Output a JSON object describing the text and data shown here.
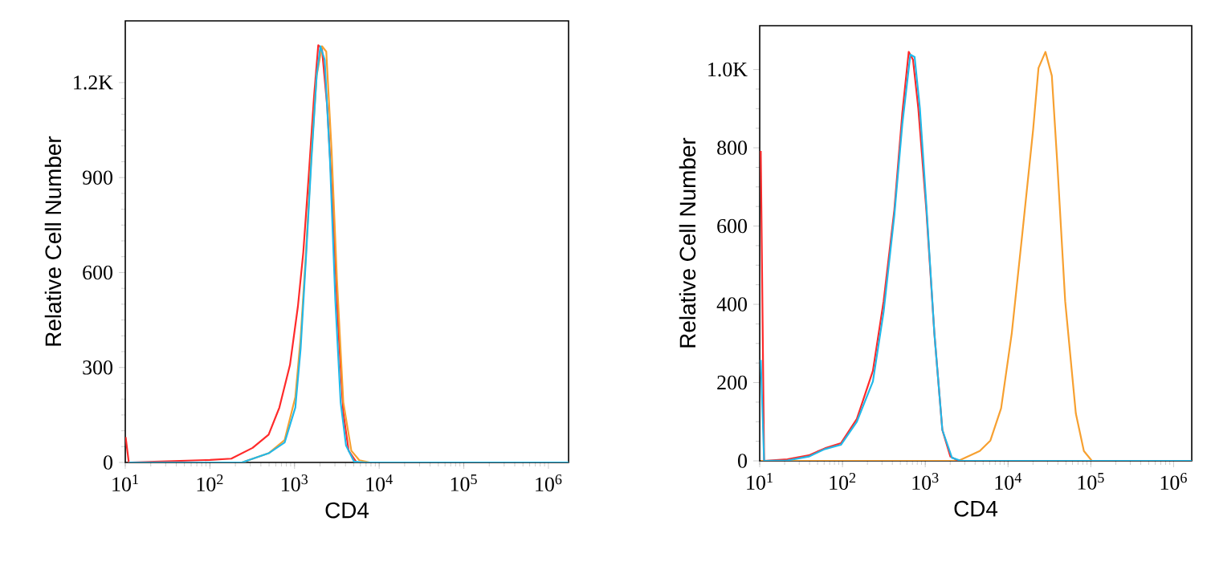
{
  "chart_data": [
    {
      "type": "line",
      "xlabel": "CD4",
      "ylabel": "Relative Cell Number",
      "log": "x",
      "xlim": [
        10,
        1730000
      ],
      "ylim": [
        0,
        1395
      ],
      "xticks": [
        {
          "value": 10,
          "label": "10$^{1}$"
        },
        {
          "value": 100,
          "label": "10$^{2}$"
        },
        {
          "value": 1000,
          "label": "10$^{3}$"
        },
        {
          "value": 10000,
          "label": "10$^{4}$"
        },
        {
          "value": 100000,
          "label": "10$^{5}$"
        },
        {
          "value": 1000000,
          "label": "10$^{6}$"
        }
      ],
      "yticks": [
        0,
        300,
        600,
        900,
        {
          "value": 1200,
          "label": "1.2K"
        }
      ],
      "series": [
        {
          "color": "#ff2a2a",
          "x": [
            10.1,
            11,
            100,
            179,
            319,
            494,
            661,
            883,
            1097,
            1268,
            1466,
            1698,
            1906,
            2110,
            2440,
            2820,
            3260,
            3770,
            4360,
            5420,
            1730000
          ],
          "values": [
            80,
            0,
            8,
            12,
            46,
            88,
            173,
            308,
            494,
            663,
            900,
            1154,
            1318,
            1306,
            1120,
            816,
            443,
            156,
            37,
            0,
            0
          ]
        },
        {
          "color": "#f7a030",
          "x": [
            11,
            239,
            494,
            764,
            1021,
            1180,
            1365,
            1578,
            1825,
            2110,
            2370,
            2740,
            3170,
            3770,
            4690,
            5825,
            7785,
            1730000
          ],
          "values": [
            0,
            0,
            29,
            71,
            206,
            393,
            663,
            968,
            1222,
            1315,
            1298,
            985,
            579,
            190,
            37,
            7,
            0,
            0
          ]
        },
        {
          "color": "#22b8e8",
          "x": [
            11,
            239,
            494,
            764,
            1021,
            1180,
            1365,
            1578,
            1825,
            2020,
            2270,
            2625,
            3035,
            3505,
            4055,
            5040,
            6735,
            1730000
          ],
          "values": [
            0,
            0,
            29,
            63,
            173,
            359,
            646,
            951,
            1222,
            1315,
            1272,
            951,
            511,
            190,
            54,
            3,
            0,
            0
          ]
        }
      ]
    },
    {
      "type": "line",
      "xlabel": "CD4",
      "ylabel": "Relative Cell Number",
      "log": "x",
      "xlim": [
        10,
        1656000
      ],
      "ylim": [
        0,
        1112
      ],
      "xticks": [
        {
          "value": 10,
          "label": "10$^{1}$"
        },
        {
          "value": 100,
          "label": "10$^{2}$"
        },
        {
          "value": 1000,
          "label": "10$^{3}$"
        },
        {
          "value": 10000,
          "label": "10$^{4}$"
        },
        {
          "value": 100000,
          "label": "10$^{5}$"
        },
        {
          "value": 1000000,
          "label": "10$^{6}$"
        }
      ],
      "yticks": [
        0,
        200,
        400,
        600,
        800,
        {
          "value": 1000,
          "label": "1.0K"
        }
      ],
      "series": [
        {
          "color": "#f7a030",
          "x": [
            10.3,
            2512,
            4550,
            6120,
            8240,
            11090,
            14930,
            20100,
            23330,
            28300,
            33800,
            39260,
            49000,
            65900,
            82400,
            103000,
            1656000
          ],
          "values": [
            0,
            0,
            25,
            52,
            134,
            326,
            584,
            847,
            1004,
            1045,
            984,
            764,
            408,
            121,
            25,
            0,
            0
          ]
        },
        {
          "color": "#ff2a2a",
          "x": [
            10.3,
            11.3,
            21.6,
            39.2,
            61.3,
            95.7,
            149,
            233,
            314,
            423,
            528,
            631,
            711,
            824,
            1030,
            1288,
            1608,
            2010,
            2512,
            1656000
          ],
          "values": [
            792,
            0,
            4,
            14,
            32,
            45,
            107,
            230,
            408,
            641,
            888,
            1045,
            1025,
            901,
            641,
            326,
            79,
            11,
            0,
            0
          ]
        },
        {
          "color": "#22b8e8",
          "x": [
            10.3,
            11.3,
            21.6,
            39.2,
            61.3,
            95.7,
            149,
            233,
            314,
            423,
            528,
            660,
            743,
            861,
            1030,
            1288,
            1608,
            2100,
            2705,
            1656000
          ],
          "values": [
            258,
            0,
            1,
            11,
            30,
            41,
            100,
            203,
            381,
            627,
            860,
            1038,
            1032,
            901,
            655,
            326,
            79,
            8,
            0,
            0
          ]
        }
      ]
    }
  ]
}
